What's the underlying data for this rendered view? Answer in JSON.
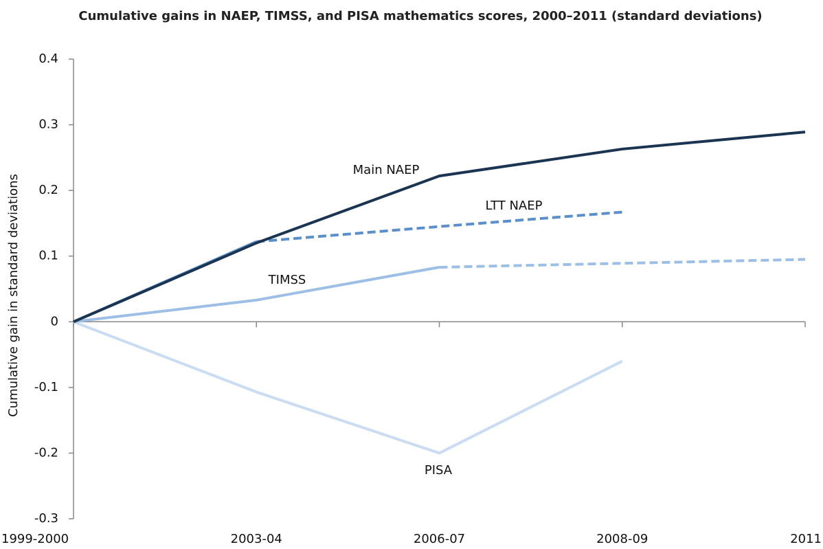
{
  "chart_data": {
    "type": "line",
    "title": "Cumulative gains in NAEP, TIMSS, and PISA mathematics scores, 2000–2011 (standard deviations)",
    "y_label": "Cumulative gain in standard deviations",
    "categories": [
      "1999-2000",
      "2003-04",
      "2006-07",
      "2008-09",
      "2011"
    ],
    "series": [
      {
        "name": "Main NAEP",
        "color": "#1b3451",
        "values": [
          0,
          0.12,
          0.222,
          0.263,
          0.289
        ]
      },
      {
        "name": "LTT  NAEP",
        "color": "#5b8fcc",
        "values": [
          0,
          0.122,
          0.145,
          0.167,
          null
        ],
        "dashed_from": 1
      },
      {
        "name": "TIMSS",
        "color": "#9dbfe6",
        "values": [
          0,
          0.033,
          0.083,
          0.089,
          0.095
        ],
        "dashed_from": 2
      },
      {
        "name": "PISA",
        "color": "#c9dcf2",
        "values": [
          0,
          -0.107,
          -0.2,
          -0.06,
          null
        ]
      }
    ],
    "ylim": [
      -0.3,
      0.4
    ],
    "yticks": [
      -0.3,
      -0.2,
      -0.1,
      0,
      0.1,
      0.2,
      0.3,
      0.4
    ]
  }
}
